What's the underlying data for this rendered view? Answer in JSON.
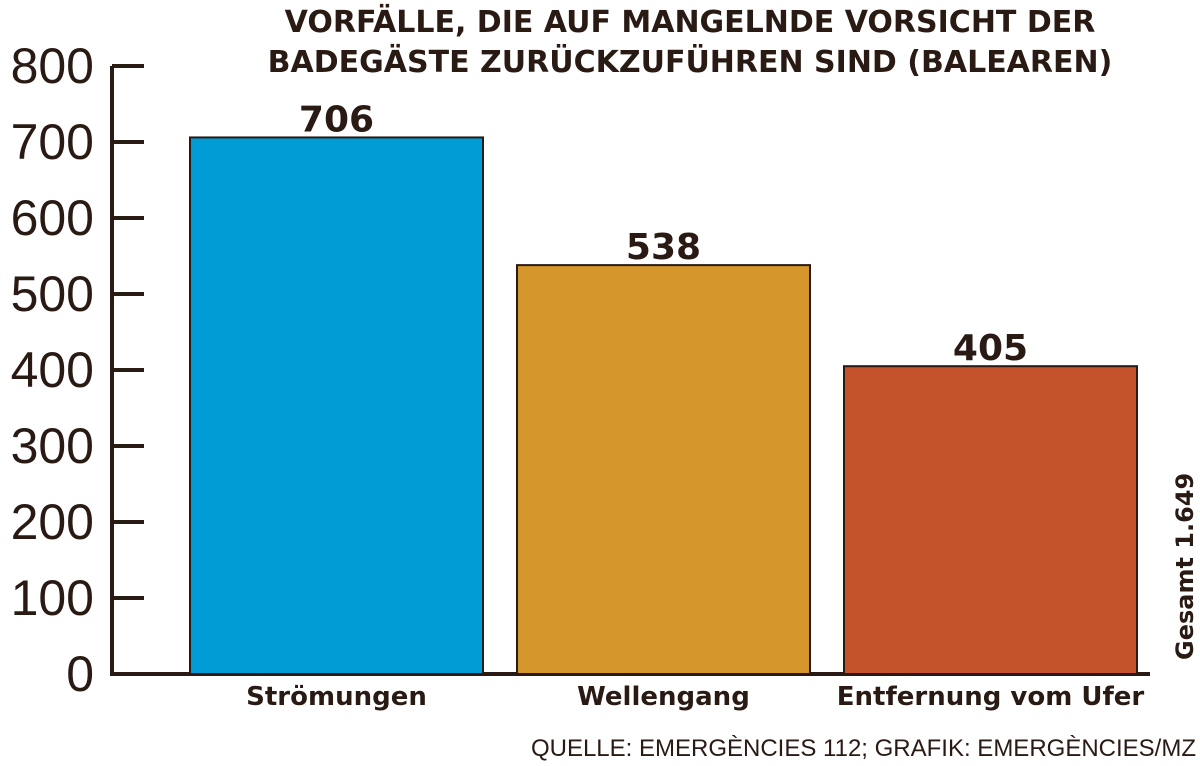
{
  "chart_data": {
    "type": "bar",
    "title_lines": [
      "VORFÄLLE, DIE AUF MANGELNDE VORSICHT DER",
      "BADEGÄSTE ZURÜCKZUFÜHREN SIND (BALEAREN)"
    ],
    "categories": [
      "Strömungen",
      "Wellengang",
      "Entfernung vom Ufer"
    ],
    "values": [
      706,
      538,
      405
    ],
    "value_labels": [
      "706",
      "538",
      "405"
    ],
    "colors": [
      "#009cd6",
      "#d5962c",
      "#c4532b"
    ],
    "ylim": [
      0,
      800
    ],
    "yticks": [
      "0",
      "100",
      "200",
      "300",
      "400",
      "500",
      "600",
      "700",
      "800"
    ],
    "total_label": "Gesamt 1.649",
    "source": "QUELLE: EMERGÈNCIES 112; GRAFIK: EMERGÈNCIES/MZ",
    "axis_color": "#2a1a14",
    "grid": false,
    "legend": "none"
  }
}
